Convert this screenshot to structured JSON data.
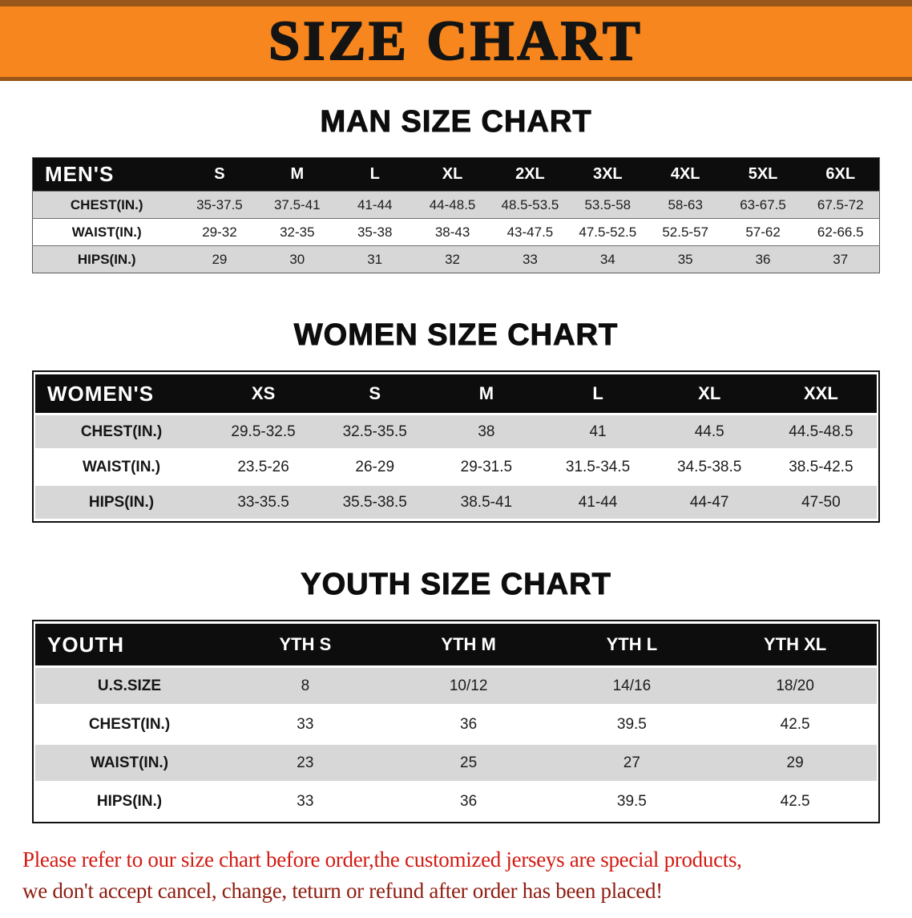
{
  "banner": {
    "title": "SIZE CHART"
  },
  "colors": {
    "banner_orange": "#f6861d",
    "banner_edge": "#99561a",
    "table_header_black": "#0d0d0d",
    "row_gray": "#d7d7d7",
    "footer_red": "#d21a12",
    "footer_red_dark": "#8e1c10"
  },
  "sections": [
    {
      "id": "men",
      "heading": "MAN SIZE CHART",
      "label": "MEN'S",
      "columns": [
        "S",
        "M",
        "L",
        "XL",
        "2XL",
        "3XL",
        "4XL",
        "5XL",
        "6XL"
      ],
      "rows": [
        {
          "label": "CHEST(IN.)",
          "values": [
            "35-37.5",
            "37.5-41",
            "41-44",
            "44-48.5",
            "48.5-53.5",
            "53.5-58",
            "58-63",
            "63-67.5",
            "67.5-72"
          ]
        },
        {
          "label": "WAIST(IN.)",
          "values": [
            "29-32",
            "32-35",
            "35-38",
            "38-43",
            "43-47.5",
            "47.5-52.5",
            "52.5-57",
            "57-62",
            "62-66.5"
          ]
        },
        {
          "label": "HIPS(IN.)",
          "values": [
            "29",
            "30",
            "31",
            "32",
            "33",
            "34",
            "35",
            "36",
            "37"
          ]
        }
      ],
      "shading": [
        "gray",
        "white",
        "gray"
      ]
    },
    {
      "id": "women",
      "heading": "WOMEN SIZE CHART",
      "label": "WOMEN'S",
      "columns": [
        "XS",
        "S",
        "M",
        "L",
        "XL",
        "XXL"
      ],
      "rows": [
        {
          "label": "CHEST(IN.)",
          "values": [
            "29.5-32.5",
            "32.5-35.5",
            "38",
            "41",
            "44.5",
            "44.5-48.5"
          ]
        },
        {
          "label": "WAIST(IN.)",
          "values": [
            "23.5-26",
            "26-29",
            "29-31.5",
            "31.5-34.5",
            "34.5-38.5",
            "38.5-42.5"
          ]
        },
        {
          "label": "HIPS(IN.)",
          "values": [
            "33-35.5",
            "35.5-38.5",
            "38.5-41",
            "41-44",
            "44-47",
            "47-50"
          ]
        }
      ],
      "shading": [
        "gray",
        "white",
        "gray"
      ]
    },
    {
      "id": "youth",
      "heading": "YOUTH SIZE CHART",
      "label": "YOUTH",
      "columns": [
        "YTH S",
        "YTH M",
        "YTH L",
        "YTH XL"
      ],
      "rows": [
        {
          "label": "U.S.SIZE",
          "values": [
            "8",
            "10/12",
            "14/16",
            "18/20"
          ]
        },
        {
          "label": "CHEST(IN.)",
          "values": [
            "33",
            "36",
            "39.5",
            "42.5"
          ]
        },
        {
          "label": "WAIST(IN.)",
          "values": [
            "23",
            "25",
            "27",
            "29"
          ]
        },
        {
          "label": "HIPS(IN.)",
          "values": [
            "33",
            "36",
            "39.5",
            "42.5"
          ]
        }
      ],
      "shading": [
        "gray",
        "white",
        "gray",
        "white"
      ]
    }
  ],
  "footer": {
    "line1": "Please refer to our size chart before order,the customized jerseys are special products,",
    "line2": "we don't accept cancel, change, teturn or refund after order has been placed!"
  }
}
